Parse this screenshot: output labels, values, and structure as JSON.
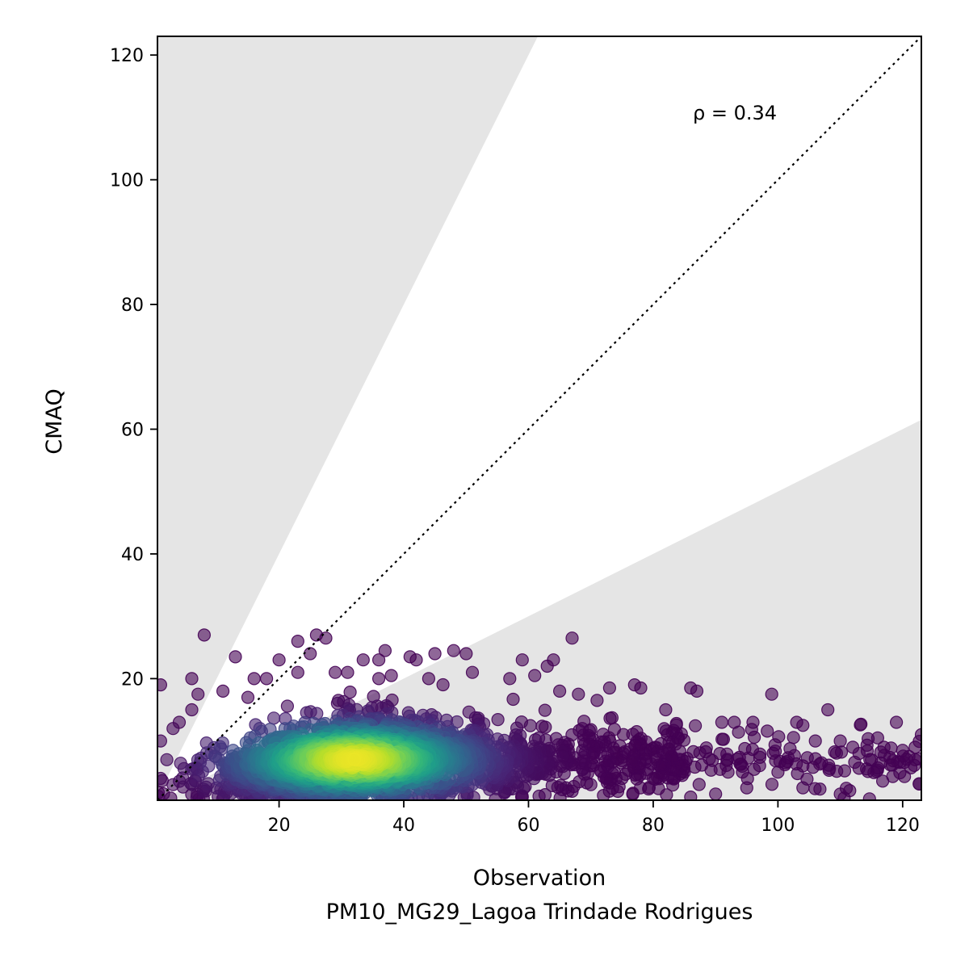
{
  "chart_data": {
    "type": "scatter",
    "title": "",
    "xlabel": "Observation",
    "xlabel_sub": "PM10_MG29_Lagoa Trindade Rodrigues",
    "ylabel": "CMAQ",
    "xlim": [
      0.5,
      123
    ],
    "ylim": [
      0.5,
      123
    ],
    "xticks": [
      20,
      40,
      60,
      80,
      100,
      120
    ],
    "yticks": [
      20,
      40,
      60,
      80,
      100,
      120
    ],
    "xtick_labels": [
      "20",
      "40",
      "60",
      "80",
      "100",
      "120"
    ],
    "ytick_labels": [
      "20",
      "40",
      "60",
      "80",
      "100",
      "120"
    ],
    "annotation": "ρ = 0.34",
    "identity_line": {
      "style": "dotted",
      "color": "#000000"
    },
    "shaded_regions": [
      {
        "description": "factor-of-2 exceedance above",
        "boundary_slope": 2,
        "color": "#e5e5e5"
      },
      {
        "description": "factor-of-2 exceedance below",
        "boundary_slope": 0.5,
        "color": "#e5e5e5"
      }
    ],
    "colormap": "viridis",
    "colormap_stops": [
      "#440154",
      "#482878",
      "#3e4a89",
      "#31688e",
      "#26828e",
      "#1f9e89",
      "#35b779",
      "#6ece58",
      "#b5de2b",
      "#fde725"
    ],
    "marker_alpha": 0.6,
    "grid": false,
    "legend": "none",
    "density_center": {
      "x": 32,
      "y": 7
    },
    "points": [
      [
        8,
        27
      ],
      [
        26,
        27
      ],
      [
        27.5,
        26.5
      ],
      [
        23,
        26
      ],
      [
        67,
        26.5
      ],
      [
        25,
        24
      ],
      [
        37,
        24.5
      ],
      [
        41,
        23.5
      ],
      [
        42,
        23
      ],
      [
        45,
        24
      ],
      [
        48,
        24.5
      ],
      [
        50,
        24
      ],
      [
        36,
        23
      ],
      [
        33.5,
        23
      ],
      [
        20,
        23
      ],
      [
        59,
        23
      ],
      [
        64,
        23
      ],
      [
        13,
        23.5
      ],
      [
        16,
        20
      ],
      [
        18,
        20
      ],
      [
        15,
        17
      ],
      [
        11,
        18
      ],
      [
        6,
        20
      ],
      [
        1,
        19
      ],
      [
        7,
        17.5
      ],
      [
        6,
        15
      ],
      [
        3,
        12
      ],
      [
        4,
        13
      ],
      [
        1,
        10
      ],
      [
        2,
        7
      ],
      [
        1,
        4
      ],
      [
        3,
        3
      ],
      [
        23,
        21
      ],
      [
        29,
        21
      ],
      [
        31,
        21
      ],
      [
        36,
        20
      ],
      [
        38,
        20.5
      ],
      [
        44,
        20
      ],
      [
        51,
        21
      ],
      [
        57,
        20
      ],
      [
        61,
        20.5
      ],
      [
        63,
        22
      ],
      [
        65,
        18
      ],
      [
        68,
        17.5
      ],
      [
        71,
        16.5
      ],
      [
        73,
        18.5
      ],
      [
        77,
        19
      ],
      [
        78,
        18.5
      ],
      [
        82,
        15
      ],
      [
        86,
        18.5
      ],
      [
        87,
        18
      ],
      [
        91,
        13
      ],
      [
        93,
        13
      ],
      [
        96,
        13
      ],
      [
        99,
        17.5
      ],
      [
        103,
        13
      ],
      [
        104,
        12.5
      ],
      [
        106,
        10
      ],
      [
        108,
        15
      ],
      [
        110,
        10
      ],
      [
        112,
        9
      ],
      [
        113,
        8
      ],
      [
        115,
        7
      ],
      [
        116,
        10.5
      ],
      [
        117,
        9
      ],
      [
        119,
        13
      ],
      [
        120,
        8.5
      ],
      [
        121,
        7.5
      ],
      [
        122,
        9
      ],
      [
        123,
        11
      ],
      [
        122,
        7
      ],
      [
        104,
        6
      ],
      [
        107,
        6.5
      ],
      [
        104,
        2.5
      ],
      [
        110,
        1.5
      ],
      [
        95,
        2.5
      ],
      [
        100,
        5
      ],
      [
        92,
        5
      ],
      [
        90,
        1.5
      ],
      [
        85,
        5
      ],
      [
        86,
        1
      ],
      [
        80,
        4
      ],
      [
        78,
        9.5
      ],
      [
        75,
        4
      ],
      [
        70,
        3
      ],
      [
        66,
        2.5
      ],
      [
        62,
        5
      ],
      [
        59,
        1
      ],
      [
        55,
        3
      ],
      [
        51,
        3
      ],
      [
        46,
        1.5
      ],
      [
        40,
        2
      ],
      [
        36,
        1.5
      ],
      [
        31,
        2.5
      ],
      [
        25,
        2
      ],
      [
        20,
        1
      ],
      [
        17,
        1
      ]
    ]
  }
}
